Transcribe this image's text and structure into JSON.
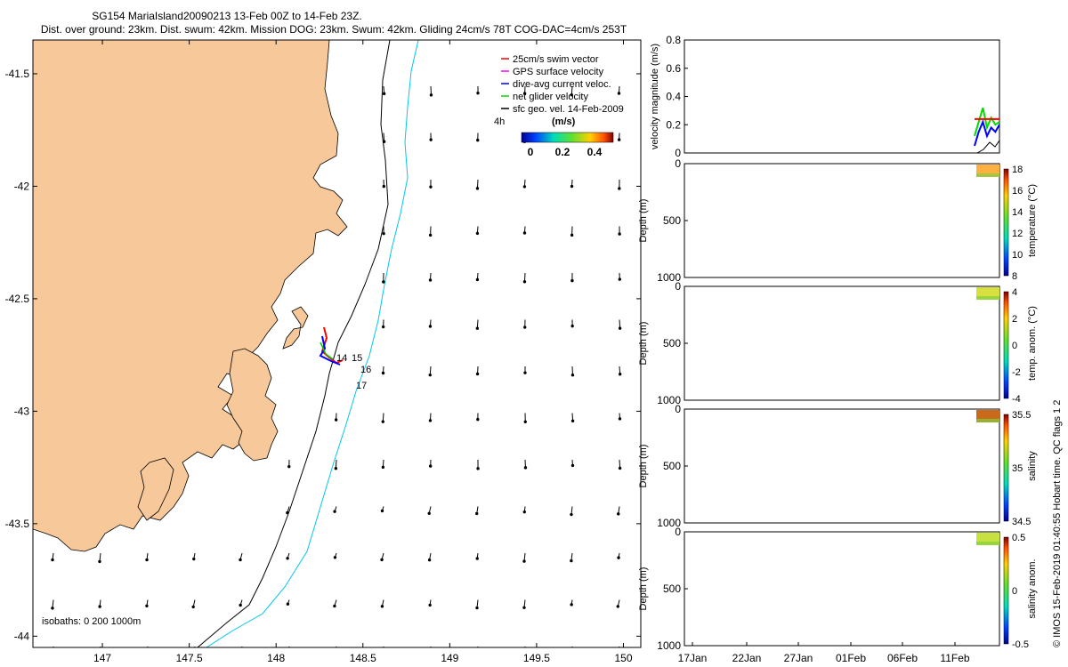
{
  "header": {
    "title": "SG154 MariaIsland20090213 13-Feb 00Z to 14-Feb 23Z.",
    "subtitle": "Dist. over ground: 23km. Dist. swum: 42km. Mission DOG: 23km. Swum: 42km. Gliding 24cm/s 78T COG-DAC=4cm/s 253T"
  },
  "map": {
    "land_color": "#f7c89a",
    "xticks": [
      "147",
      "147.5",
      "148",
      "148.5",
      "149",
      "149.5",
      "150"
    ],
    "yticks": [
      "-41.5",
      "-42",
      "-42.5",
      "-43",
      "-43.5",
      "-44"
    ],
    "xlim": [
      146.6,
      150.1
    ],
    "ylim": [
      -44.05,
      -41.35
    ],
    "isobath_label": "isobaths: 0   200   1000m",
    "isobath_colors": {
      "200m": "#000000",
      "1000m": "#00c8e8"
    },
    "time_labels": [
      "14",
      "15",
      "16",
      "17"
    ],
    "legend": {
      "entries": [
        {
          "label": "25cm/s swim vector",
          "color": "#ff0000"
        },
        {
          "label": "GPS surface velocity",
          "color": "#ff00ff"
        },
        {
          "label": "dive-avg current veloc.",
          "color": "#0000ff"
        },
        {
          "label": "net glider velocity",
          "color": "#00dd00"
        },
        {
          "label": "sfc geo. vel. 14-Feb-2009",
          "color": "#000000"
        }
      ],
      "scale_label": "4h",
      "colorbar_title": "(m/s)",
      "colorbar_ticks": [
        "0",
        "0.2",
        "0.4"
      ]
    }
  },
  "panels": {
    "velocity": {
      "ylabel": "velocity magnitude (m/s)",
      "yticks": [
        "0",
        "0.2",
        "0.4",
        "0.6",
        "0.8"
      ]
    },
    "sections": [
      {
        "id": "temperature",
        "ylabel": "Depth (m)",
        "cbar_label": "temperature (°C)",
        "cbar_ticks": [
          "8",
          "10",
          "12",
          "14",
          "16",
          "18"
        ],
        "data_color": "#ffb040"
      },
      {
        "id": "temp_anom",
        "ylabel": "Depth (m)",
        "cbar_label": "temp. anom. (°C)",
        "cbar_ticks": [
          "-4",
          "-2",
          "0",
          "2",
          "4"
        ],
        "data_color": "#d8e040"
      },
      {
        "id": "salinity",
        "ylabel": "Depth (m)",
        "cbar_label": "salinity",
        "cbar_ticks": [
          "34.5",
          "35",
          "35.5"
        ],
        "data_color": "#c86a1a"
      },
      {
        "id": "salinity_anom",
        "ylabel": "Depth (m)",
        "cbar_label": "salinity anom.",
        "cbar_ticks": [
          "-0.5",
          "0",
          "0.5"
        ],
        "data_color": "#c8e040"
      }
    ],
    "depth_ticks": [
      "0",
      "500",
      "1000"
    ],
    "date_ticks": [
      "17Jan",
      "22Jan",
      "27Jan",
      "01Feb",
      "06Feb",
      "11Feb"
    ]
  },
  "credit": "© IMOS 15-Feb-2019 01:40:55 Hobart time. QC flags 1  2",
  "chart_data": [
    {
      "type": "scatter",
      "title": "SG154 MariaIsland20090213 13-Feb 00Z to 14-Feb 23Z.",
      "xlabel": "",
      "ylabel": "",
      "xlim": [
        146.6,
        150.1
      ],
      "ylim": [
        -44.05,
        -41.35
      ],
      "series": [
        {
          "name": "25cm/s swim vector",
          "x": [
            148.23,
            148.25,
            148.28,
            148.32,
            148.35
          ],
          "y": [
            -42.67,
            -42.73,
            -42.78,
            -42.81,
            -42.84
          ]
        }
      ]
    },
    {
      "type": "line",
      "xlabel": "",
      "ylabel": "velocity magnitude (m/s)",
      "ylim": [
        0,
        0.8
      ],
      "series": [
        {
          "name": "net glider velocity",
          "values": [
            0.12,
            0.22,
            0.32,
            0.18,
            0.25,
            0.2,
            0.22
          ]
        },
        {
          "name": "dive-avg current veloc.",
          "values": [
            0.05,
            0.15,
            0.22,
            0.12,
            0.18,
            0.15,
            0.2
          ]
        },
        {
          "name": "25cm/s swim vector",
          "values": [
            0.24,
            0.24,
            0.24,
            0.24,
            0.24,
            0.24,
            0.24
          ]
        }
      ]
    }
  ]
}
